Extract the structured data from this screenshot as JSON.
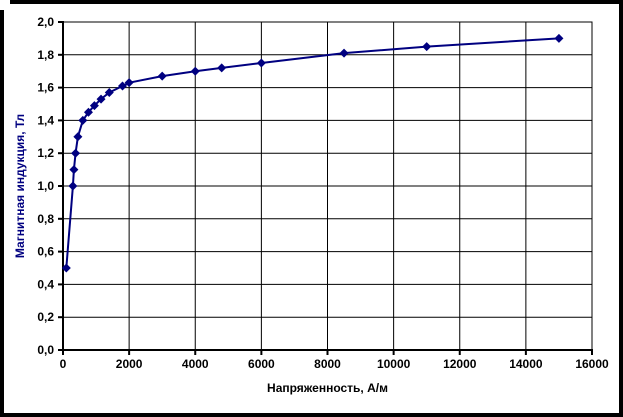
{
  "chart_data": {
    "type": "line",
    "title": "",
    "xlabel": "Напряженность, А/м",
    "ylabel": "Магнитная индукция, Тл",
    "x": [
      100,
      300,
      330,
      380,
      450,
      600,
      770,
      950,
      1150,
      1400,
      1800,
      2000,
      3000,
      4000,
      4800,
      6000,
      8500,
      11000,
      15000
    ],
    "y": [
      0.5,
      1.0,
      1.1,
      1.2,
      1.3,
      1.4,
      1.45,
      1.49,
      1.53,
      1.57,
      1.61,
      1.63,
      1.67,
      1.7,
      1.72,
      1.75,
      1.81,
      1.85,
      1.9
    ],
    "xlim": [
      0,
      16000
    ],
    "ylim": [
      0.0,
      2.0
    ],
    "x_tick_step": 2000,
    "y_tick_step": 0.2,
    "x_tick_labels": [
      "0",
      "2000",
      "4000",
      "6000",
      "8000",
      "10000",
      "12000",
      "14000",
      "16000"
    ],
    "y_tick_labels": [
      "0,0",
      "0,2",
      "0,4",
      "0,6",
      "0,8",
      "1,0",
      "1,2",
      "1,4",
      "1,6",
      "1,8",
      "2,0"
    ],
    "grid": true,
    "legend": "none",
    "marker": "diamond",
    "line_color": "#000080",
    "marker_color": "#000080",
    "grid_color": "#000000",
    "axis_color": "#000000",
    "tick_label_color": "#000000",
    "xlabel_color": "#000000",
    "ylabel_color": "#000080",
    "plot_background": "#ffffff"
  }
}
